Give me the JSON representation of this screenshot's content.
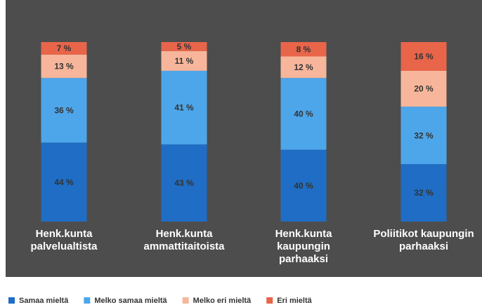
{
  "chart_data": {
    "type": "stacked_bar",
    "categories": [
      "Henk.kunta\npalvelualtista",
      "Henk.kunta\nammattitaitoista",
      "Henk.kunta\nkaupungin\nparhaaksi",
      "Poliitikot kaupungin\nparhaaksi"
    ],
    "series": [
      {
        "name": "Samaa mieltä",
        "color": "#1f6dc4",
        "values": [
          44,
          43,
          40,
          32
        ],
        "value_labels": [
          "44 %",
          "43 %",
          "40 %",
          "32 %"
        ]
      },
      {
        "name": "Melko samaa mieltä",
        "color": "#4ea6ea",
        "values": [
          36,
          41,
          40,
          32
        ],
        "value_labels": [
          "36 %",
          "41 %",
          "40 %",
          "32 %"
        ]
      },
      {
        "name": "Melko eri mieltä",
        "color": "#f7b69b",
        "values": [
          13,
          11,
          12,
          20
        ],
        "value_labels": [
          "13 %",
          "11 %",
          "12 %",
          "20 %"
        ]
      },
      {
        "name": "Eri mieltä",
        "color": "#e8654a",
        "values": [
          7,
          5,
          8,
          16
        ],
        "value_labels": [
          "7 %",
          "5 %",
          "8 %",
          "16 %"
        ]
      }
    ],
    "ylim": [
      0,
      100
    ],
    "legend": "bottom"
  }
}
